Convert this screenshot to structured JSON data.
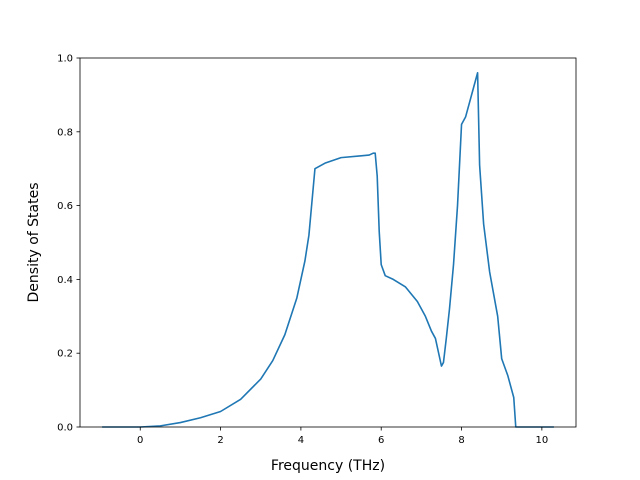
{
  "colors": {
    "series": "#1f77b4",
    "axes": "#000000",
    "background": "#ffffff"
  },
  "chart_data": {
    "type": "line",
    "title": "",
    "xlabel": "Frequency (THz)",
    "ylabel": "Density of States",
    "xlim": [
      -1.5,
      10.85
    ],
    "ylim": [
      0.0,
      1.0
    ],
    "grid": false,
    "legend": "none",
    "xticks": [
      0,
      2,
      4,
      6,
      8,
      10
    ],
    "xtick_labels": [
      "0",
      "2",
      "4",
      "6",
      "8",
      "10"
    ],
    "yticks": [
      0.0,
      0.2,
      0.4,
      0.6,
      0.8,
      1.0
    ],
    "ytick_labels": [
      "0.0",
      "0.2",
      "0.4",
      "0.6",
      "0.8",
      "1.0"
    ],
    "series": [
      {
        "x": [
          -0.95,
          0.0,
          0.5,
          1.0,
          1.5,
          2.0,
          2.5,
          3.0,
          3.3,
          3.6,
          3.9,
          4.1,
          4.2,
          4.25,
          4.35,
          4.6,
          5.0,
          5.5,
          5.7,
          5.8,
          5.85,
          5.9,
          5.95,
          6.0,
          6.1,
          6.3,
          6.6,
          6.9,
          7.1,
          7.25,
          7.35,
          7.45,
          7.5,
          7.55,
          7.62,
          7.7,
          7.8,
          7.9,
          8.0,
          8.1,
          8.2,
          8.3,
          8.4,
          8.45,
          8.55,
          8.7,
          8.9,
          9.0,
          9.15,
          9.3,
          9.35,
          9.5,
          10.3
        ],
        "y": [
          0.0,
          0.0,
          0.003,
          0.012,
          0.025,
          0.042,
          0.075,
          0.13,
          0.18,
          0.25,
          0.35,
          0.45,
          0.52,
          0.58,
          0.7,
          0.715,
          0.73,
          0.735,
          0.737,
          0.742,
          0.742,
          0.68,
          0.53,
          0.44,
          0.41,
          0.4,
          0.38,
          0.34,
          0.3,
          0.26,
          0.24,
          0.19,
          0.165,
          0.175,
          0.24,
          0.32,
          0.44,
          0.6,
          0.82,
          0.84,
          0.88,
          0.92,
          0.96,
          0.71,
          0.55,
          0.42,
          0.3,
          0.185,
          0.14,
          0.08,
          0.0,
          0.0,
          0.0
        ]
      }
    ]
  }
}
